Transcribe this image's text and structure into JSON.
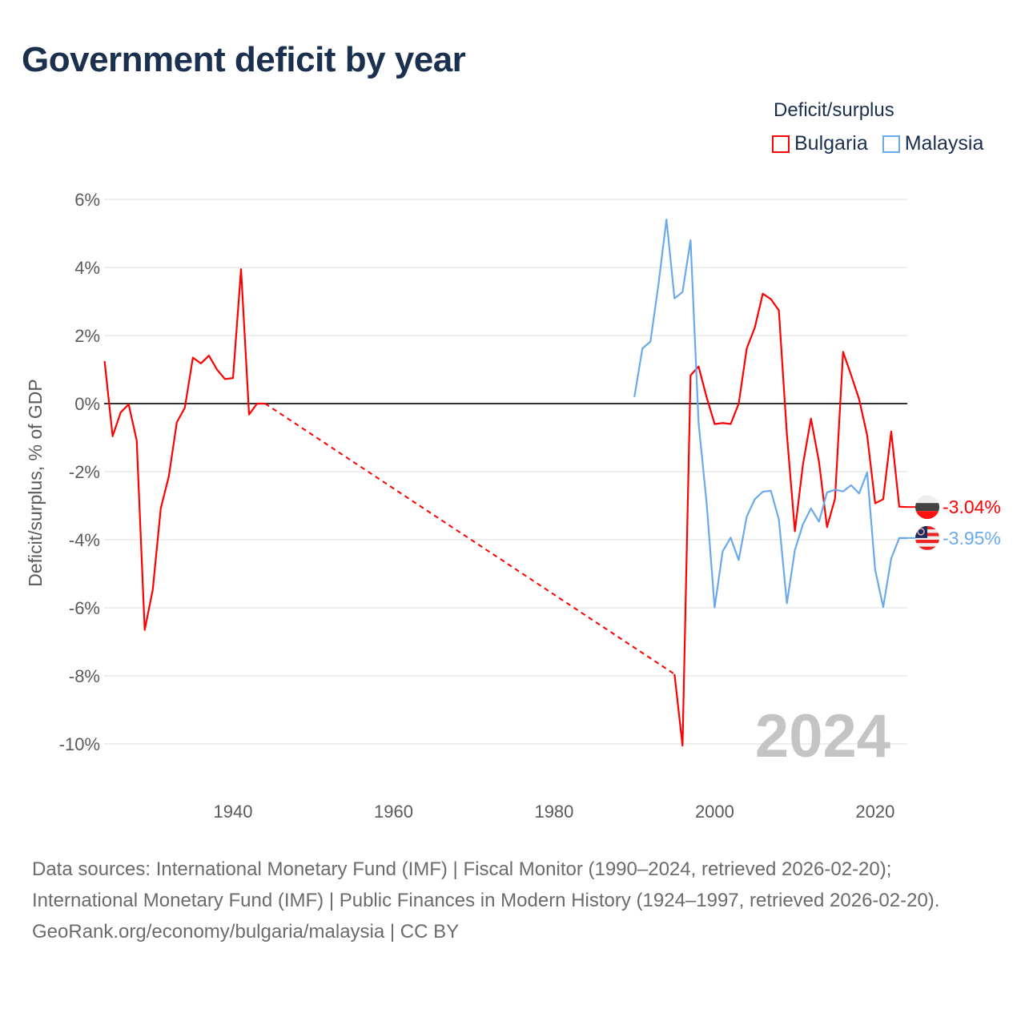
{
  "title": "Government deficit by year",
  "legend": {
    "title": "Deficit/surplus",
    "items": [
      {
        "label": "Bulgaria",
        "color": "#ff0000"
      },
      {
        "label": "Malaysia",
        "color": "#6aaaea"
      }
    ]
  },
  "chart_data": {
    "type": "line",
    "title": "Government deficit by year",
    "xlabel": "",
    "ylabel": "Deficit/surplus, % of GDP",
    "xlim": [
      1924,
      2024
    ],
    "ylim": [
      -11,
      6.5
    ],
    "x_ticks": [
      1940,
      1960,
      1980,
      2000,
      2020
    ],
    "x_tick_labels": [
      "1940",
      "1960",
      "1980",
      "2000",
      "2020"
    ],
    "y_ticks": [
      6,
      4,
      2,
      0,
      -2,
      -4,
      -6,
      -8,
      -10
    ],
    "y_tick_labels": [
      "6%",
      "4%",
      "2%",
      "0%",
      "-2%",
      "-4%",
      "-6%",
      "-8%",
      "-10%"
    ],
    "grid": true,
    "legend_position": "top-right",
    "watermark_year": "2024",
    "series": [
      {
        "name": "Bulgaria",
        "color": "#ff0000",
        "end_label": "-3.04%",
        "flag": "bulgaria-flag",
        "points": [
          [
            1924,
            1.25
          ],
          [
            1925,
            -0.96
          ],
          [
            1926,
            -0.26
          ],
          [
            1927,
            -0.02
          ],
          [
            1928,
            -1.08
          ],
          [
            1929,
            -6.65
          ],
          [
            1930,
            -5.47
          ],
          [
            1931,
            -3.08
          ],
          [
            1932,
            -2.14
          ],
          [
            1933,
            -0.55
          ],
          [
            1934,
            -0.12
          ],
          [
            1935,
            1.35
          ],
          [
            1936,
            1.18
          ],
          [
            1937,
            1.41
          ],
          [
            1938,
            1.0
          ],
          [
            1939,
            0.72
          ],
          [
            1940,
            0.75
          ],
          [
            1941,
            3.95
          ],
          [
            1942,
            -0.32
          ],
          [
            1943,
            0.0
          ],
          [
            1944,
            0.0
          ],
          [
            1995,
            -7.95
          ],
          [
            1996,
            -10.05
          ],
          [
            1997,
            0.83
          ],
          [
            1998,
            1.09
          ],
          [
            1999,
            0.19
          ],
          [
            2000,
            -0.6
          ],
          [
            2001,
            -0.57
          ],
          [
            2002,
            -0.6
          ],
          [
            2003,
            0.0
          ],
          [
            2004,
            1.62
          ],
          [
            2005,
            2.23
          ],
          [
            2006,
            3.23
          ],
          [
            2007,
            3.07
          ],
          [
            2008,
            2.74
          ],
          [
            2009,
            -0.9
          ],
          [
            2010,
            -3.75
          ],
          [
            2011,
            -1.79
          ],
          [
            2012,
            -0.44
          ],
          [
            2013,
            -1.71
          ],
          [
            2014,
            -3.63
          ],
          [
            2015,
            -2.79
          ],
          [
            2016,
            1.52
          ],
          [
            2017,
            0.84
          ],
          [
            2018,
            0.13
          ],
          [
            2019,
            -0.93
          ],
          [
            2020,
            -2.93
          ],
          [
            2021,
            -2.81
          ],
          [
            2022,
            -0.82
          ],
          [
            2023,
            -3.03
          ],
          [
            2024,
            -3.04
          ]
        ]
      },
      {
        "name": "Malaysia",
        "color": "#6aaaea",
        "end_label": "-3.95%",
        "flag": "malaysia-flag",
        "points": [
          [
            1990,
            0.19
          ],
          [
            1991,
            1.62
          ],
          [
            1992,
            1.82
          ],
          [
            1993,
            3.5
          ],
          [
            1994,
            5.41
          ],
          [
            1995,
            3.09
          ],
          [
            1996,
            3.28
          ],
          [
            1997,
            4.8
          ],
          [
            1998,
            -0.57
          ],
          [
            1999,
            -2.92
          ],
          [
            2000,
            -5.99
          ],
          [
            2001,
            -4.34
          ],
          [
            2002,
            -3.94
          ],
          [
            2003,
            -4.6
          ],
          [
            2004,
            -3.32
          ],
          [
            2005,
            -2.81
          ],
          [
            2006,
            -2.59
          ],
          [
            2007,
            -2.56
          ],
          [
            2008,
            -3.4
          ],
          [
            2009,
            -5.87
          ],
          [
            2010,
            -4.3
          ],
          [
            2011,
            -3.55
          ],
          [
            2012,
            -3.08
          ],
          [
            2013,
            -3.47
          ],
          [
            2014,
            -2.61
          ],
          [
            2015,
            -2.53
          ],
          [
            2016,
            -2.58
          ],
          [
            2017,
            -2.4
          ],
          [
            2018,
            -2.64
          ],
          [
            2019,
            -2.02
          ],
          [
            2020,
            -4.89
          ],
          [
            2021,
            -5.98
          ],
          [
            2022,
            -4.55
          ],
          [
            2023,
            -3.95
          ],
          [
            2024,
            -3.95
          ]
        ]
      }
    ]
  },
  "footer": {
    "sources": "Data sources: International Monetary Fund (IMF) | Fiscal Monitor (1990–2024, retrieved 2026-02-20); International Monetary Fund (IMF) | Public Finances in Modern History (1924–1997, retrieved 2026-02-20).",
    "credit": "GeoRank.org/economy/bulgaria/malaysia | CC BY"
  }
}
